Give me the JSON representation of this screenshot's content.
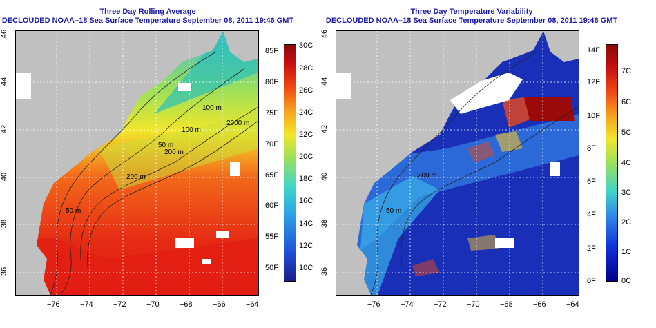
{
  "left_panel": {
    "title": "Three Day Rolling Average",
    "subtitle": "DECLOUDED NOAA–18 Sea Surface Temperature September 08, 2011 19:46 GMT",
    "x_ticks": [
      "−76",
      "−74",
      "−72",
      "−70",
      "−68",
      "−66",
      "−64"
    ],
    "y_ticks": [
      "36",
      "38",
      "40",
      "42",
      "44",
      "46"
    ],
    "contour_labels": [
      "100 m",
      "100 m",
      "2000 m",
      "200 m",
      "200 m",
      "50 m",
      "50 m"
    ],
    "colorbar_left": [
      "85F",
      "80F",
      "75F",
      "70F",
      "65F",
      "60F",
      "55F",
      "50F"
    ],
    "colorbar_right": [
      "30C",
      "28C",
      "26C",
      "24C",
      "22C",
      "20C",
      "18C",
      "16C",
      "14C",
      "12C",
      "10C"
    ]
  },
  "right_panel": {
    "title": "Three Day Temperature Variability",
    "subtitle": "DECLOUDED NOAA–18 Sea Surface Temperature September 08, 2011 19:46 GMT",
    "x_ticks": [
      "−76",
      "−74",
      "−72",
      "−70",
      "−68",
      "−66",
      "−64"
    ],
    "y_ticks": [
      "36",
      "38",
      "40",
      "42",
      "44",
      "46"
    ],
    "contour_labels": [
      "200 m",
      "50 m"
    ],
    "colorbar_left": [
      "14F",
      "12F",
      "10F",
      "8F",
      "6F",
      "4F",
      "2F",
      "0F"
    ],
    "colorbar_right": [
      "7C",
      "6C",
      "5C",
      "4C",
      "3C",
      "2C",
      "1C",
      "0C"
    ]
  },
  "colors": {
    "land": "#c0c0c0",
    "title": "#1a1aa6",
    "sst_scale": [
      "#1c1c8c",
      "#1f4fd6",
      "#2aa2e6",
      "#3fd6c8",
      "#9be05a",
      "#f2e62a",
      "#f7a21c",
      "#ee4a14",
      "#c81010",
      "#8a0a0a"
    ]
  }
}
